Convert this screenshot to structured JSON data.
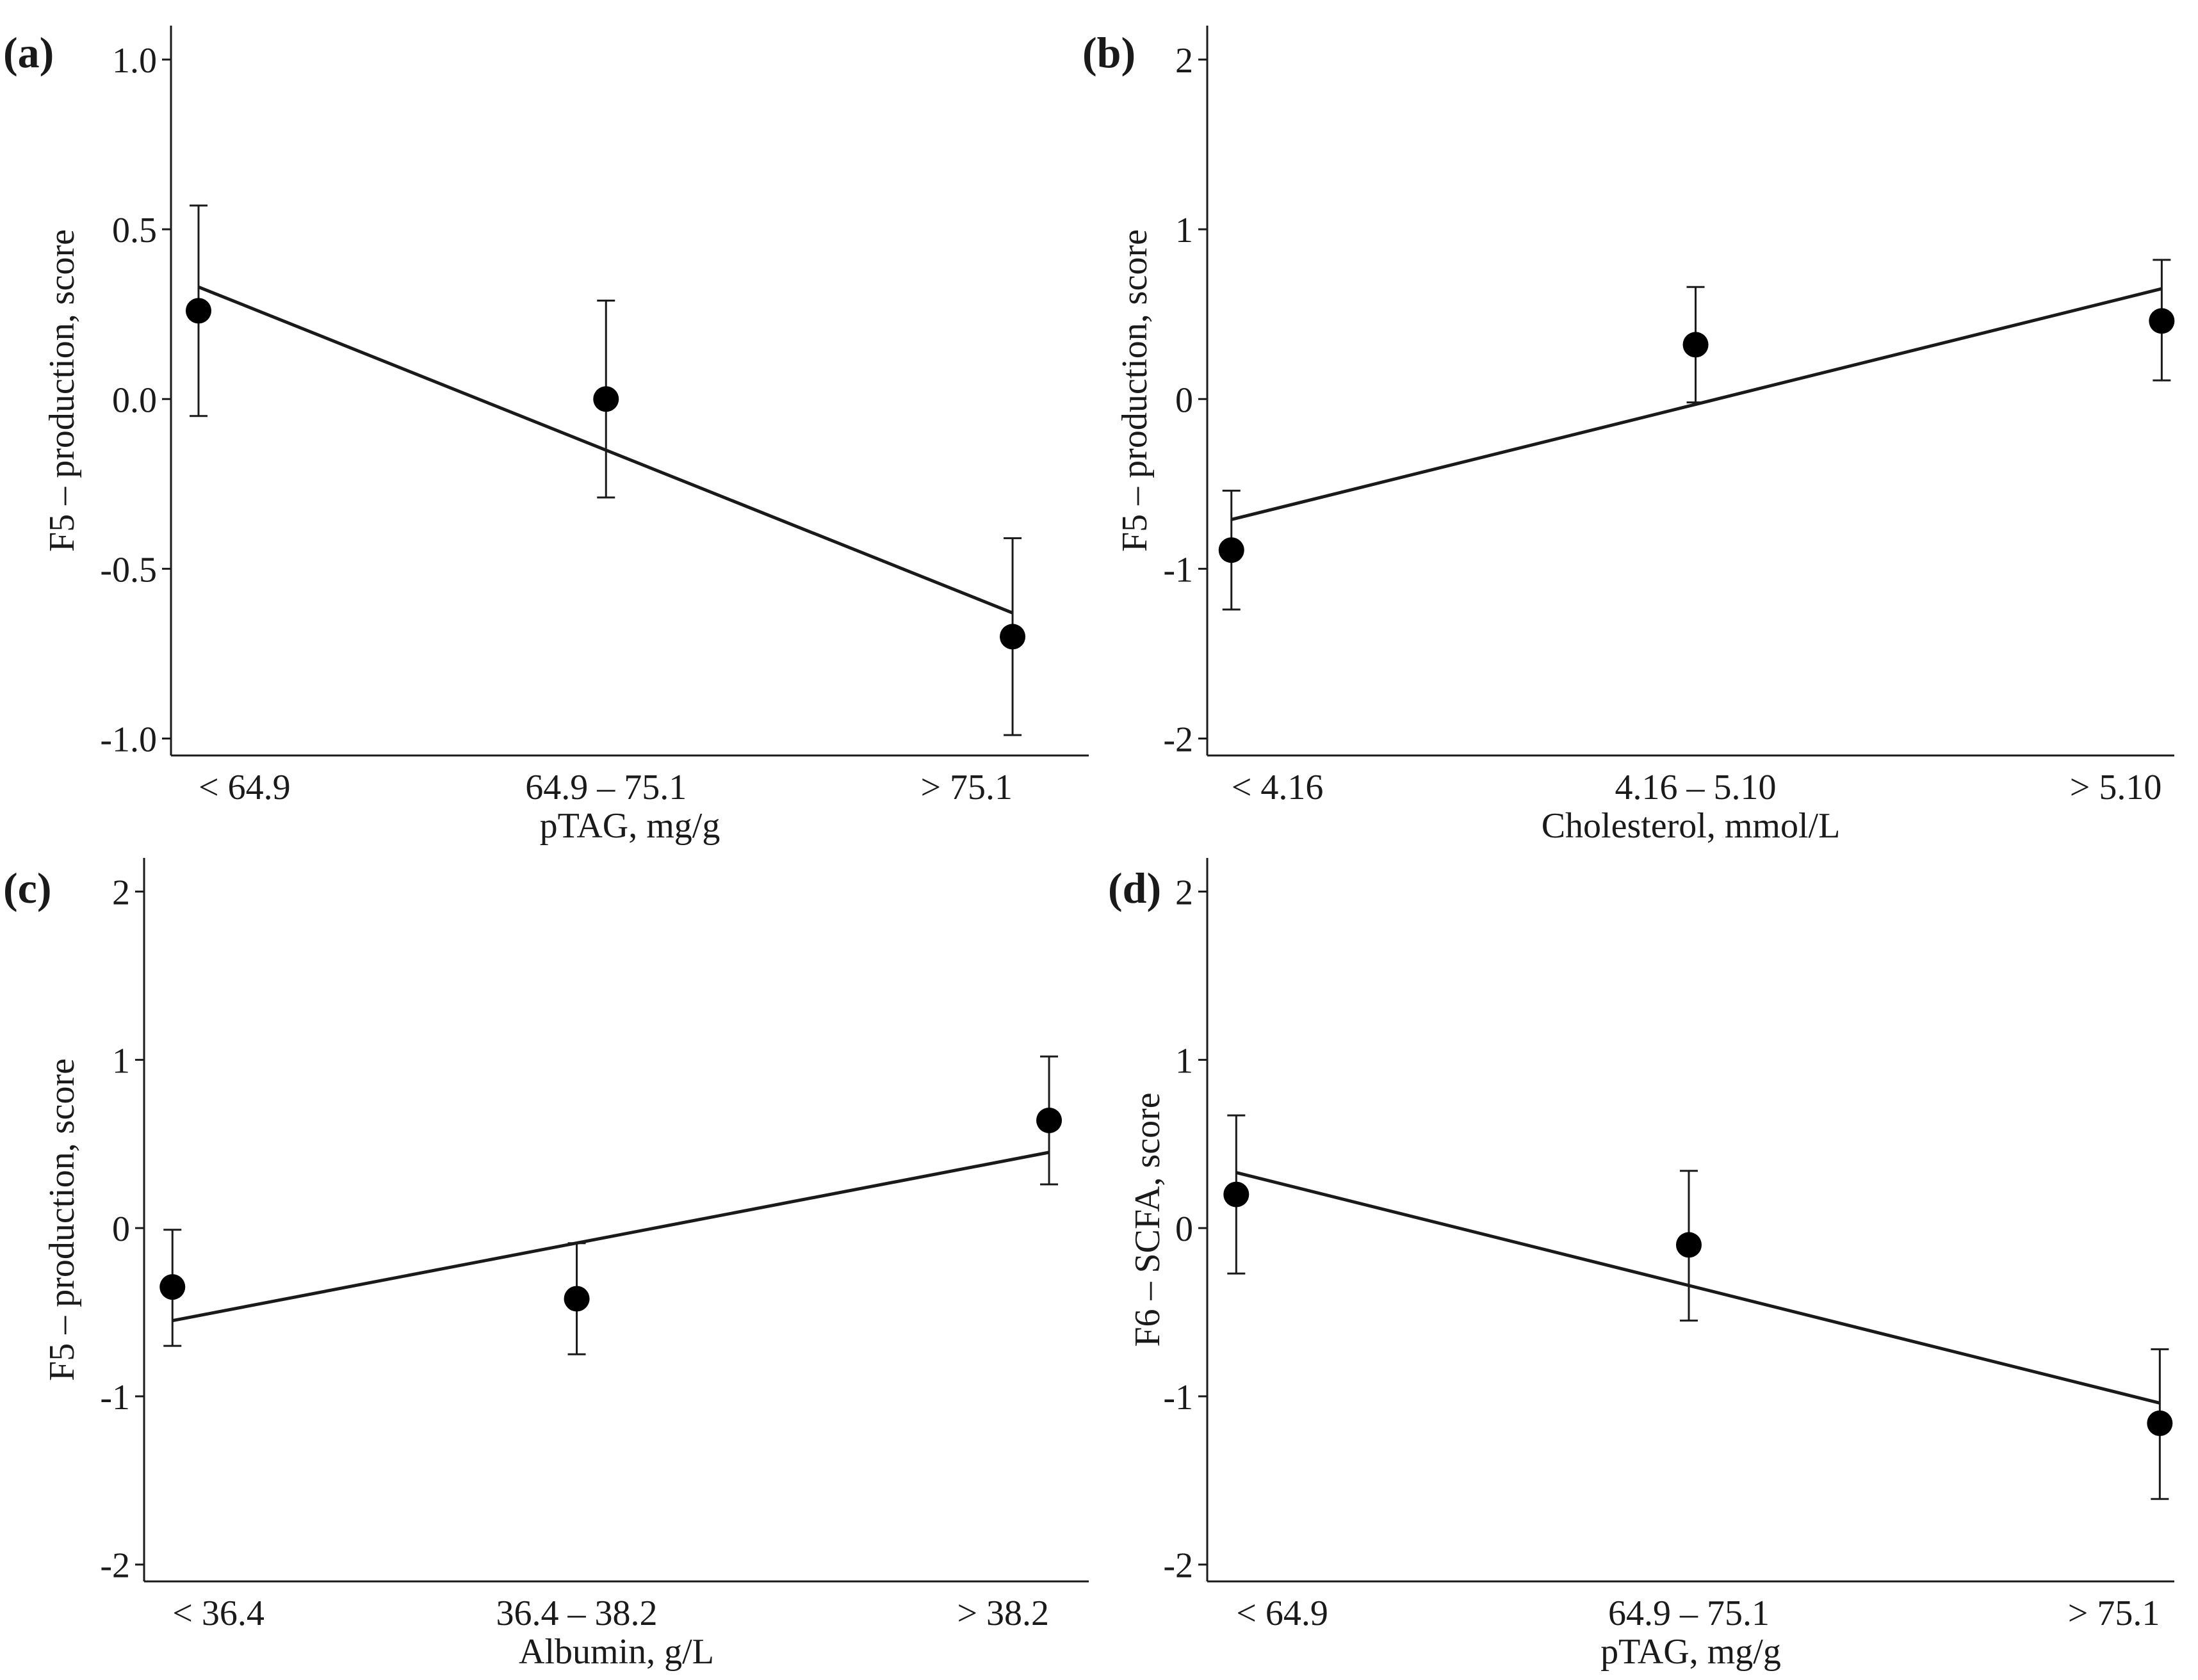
{
  "figure": {
    "panels": [
      {
        "panel_label": "(a)",
        "xlabel": "pTAG, mg/g",
        "ylabel": "F5 – production, score",
        "categories": [
          "< 64.9",
          "64.9 – 75.1",
          "> 75.1"
        ],
        "ylim": [
          -1.05,
          1.1
        ],
        "yticks": [
          -1.0,
          -0.5,
          0.0,
          0.5,
          1.0
        ],
        "ytick_labels": [
          "-1.0",
          "-0.5",
          "0.0",
          "0.5",
          "1.0"
        ]
      },
      {
        "panel_label": "(b)",
        "xlabel": "Cholesterol, mmol/L",
        "ylabel": "F5 – production, score",
        "categories": [
          "< 4.16",
          "4.16 – 5.10",
          "> 5.10"
        ],
        "ylim": [
          -2.1,
          2.2
        ],
        "yticks": [
          -2,
          -1,
          0,
          1,
          2
        ],
        "ytick_labels": [
          "-2",
          "-1",
          "0",
          "1",
          "2"
        ]
      },
      {
        "panel_label": "(c)",
        "xlabel": "Albumin, g/L",
        "ylabel": "F5 – production, score",
        "categories": [
          "< 36.4",
          "36.4 – 38.2",
          "> 38.2"
        ],
        "ylim": [
          -2.1,
          2.2
        ],
        "yticks": [
          -2,
          -1,
          0,
          1,
          2
        ],
        "ytick_labels": [
          "-2",
          "-1",
          "0",
          "1",
          "2"
        ]
      },
      {
        "panel_label": "(d)",
        "xlabel": "pTAG, mg/g",
        "ylabel": "F6 – SCFA, score",
        "categories": [
          "< 64.9",
          "64.9 – 75.1",
          "> 75.1"
        ],
        "ylim": [
          -2.1,
          2.2
        ],
        "yticks": [
          -2,
          -1,
          0,
          1,
          2
        ],
        "ytick_labels": [
          "-2",
          "-1",
          "0",
          "1",
          "2"
        ]
      }
    ]
  },
  "chart_data": [
    {
      "type": "scatter",
      "title": "(a)",
      "xlabel": "pTAG, mg/g",
      "ylabel": "F5 – production, score",
      "categories": [
        "< 64.9",
        "64.9 – 75.1",
        "> 75.1"
      ],
      "series": [
        {
          "name": "mean",
          "values": [
            0.26,
            0.0,
            -0.7
          ]
        }
      ],
      "error_bars": {
        "lower": [
          -0.05,
          -0.29,
          -0.99
        ],
        "upper": [
          0.57,
          0.29,
          -0.41
        ]
      },
      "fit_line": {
        "start": 0.33,
        "end": -0.63
      },
      "ylim": [
        -1.05,
        1.1
      ],
      "grid": false
    },
    {
      "type": "scatter",
      "title": "(b)",
      "xlabel": "Cholesterol, mmol/L",
      "ylabel": "F5 – production, score",
      "categories": [
        "< 4.16",
        "4.16 – 5.10",
        "> 5.10"
      ],
      "series": [
        {
          "name": "mean",
          "values": [
            -0.89,
            0.32,
            0.46
          ]
        }
      ],
      "error_bars": {
        "lower": [
          -1.24,
          -0.02,
          0.11
        ],
        "upper": [
          -0.54,
          0.66,
          0.82
        ]
      },
      "fit_line": {
        "start": -0.71,
        "end": 0.65
      },
      "ylim": [
        -2.1,
        2.2
      ],
      "grid": false
    },
    {
      "type": "scatter",
      "title": "(c)",
      "xlabel": "Albumin, g/L",
      "ylabel": "F5 – production, score",
      "categories": [
        "< 36.4",
        "36.4 – 38.2",
        "> 38.2"
      ],
      "series": [
        {
          "name": "mean",
          "values": [
            -0.35,
            -0.42,
            0.64
          ]
        }
      ],
      "error_bars": {
        "lower": [
          -0.7,
          -0.75,
          0.26
        ],
        "upper": [
          -0.01,
          -0.09,
          1.02
        ]
      },
      "fit_line": {
        "start": -0.55,
        "end": 0.45
      },
      "ylim": [
        -2.1,
        2.2
      ],
      "grid": false
    },
    {
      "type": "scatter",
      "title": "(d)",
      "xlabel": "pTAG, mg/g",
      "ylabel": "F6 – SCFA, score",
      "categories": [
        "< 64.9",
        "64.9 – 75.1",
        "> 75.1"
      ],
      "series": [
        {
          "name": "mean",
          "values": [
            0.2,
            -0.1,
            -1.16
          ]
        }
      ],
      "error_bars": {
        "lower": [
          -0.27,
          -0.55,
          -1.61
        ],
        "upper": [
          0.67,
          0.34,
          -0.72
        ]
      },
      "fit_line": {
        "start": 0.33,
        "end": -1.04
      },
      "ylim": [
        -2.1,
        2.2
      ],
      "grid": false
    }
  ]
}
